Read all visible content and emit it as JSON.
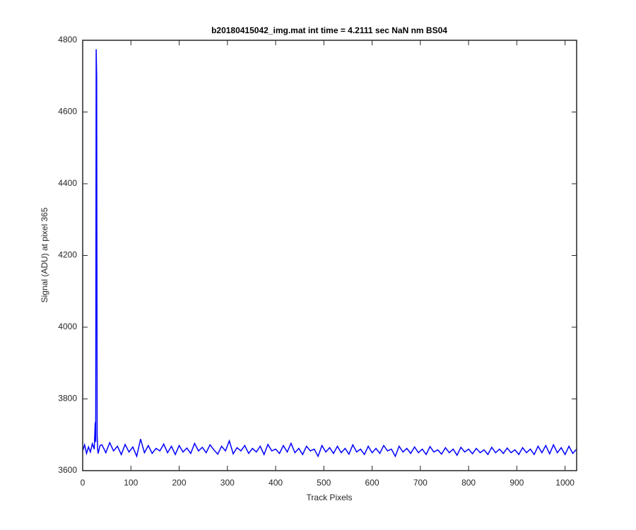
{
  "chart_data": {
    "type": "line",
    "title": "b20180415042_img.mat int time = 4.2111 sec  NaN nm BS04",
    "x_label": "Track Pixels",
    "y_label": "Signal (ADU) at pixel 365",
    "color": "#0000ff",
    "x": [
      0,
      4,
      8,
      12,
      16,
      20,
      24,
      26,
      27,
      28,
      29,
      30,
      31,
      32,
      36,
      40,
      48,
      56,
      64,
      72,
      80,
      88,
      96,
      104,
      112,
      120,
      128,
      136,
      144,
      152,
      160,
      168,
      176,
      184,
      192,
      200,
      208,
      216,
      224,
      232,
      240,
      248,
      256,
      264,
      272,
      280,
      288,
      296,
      304,
      312,
      320,
      328,
      336,
      344,
      352,
      360,
      368,
      376,
      384,
      392,
      400,
      408,
      416,
      424,
      432,
      440,
      448,
      456,
      464,
      472,
      480,
      488,
      496,
      504,
      512,
      520,
      528,
      536,
      544,
      552,
      560,
      568,
      576,
      584,
      592,
      600,
      608,
      616,
      624,
      632,
      640,
      648,
      656,
      664,
      672,
      680,
      688,
      696,
      704,
      712,
      720,
      728,
      736,
      744,
      752,
      760,
      768,
      776,
      784,
      792,
      800,
      808,
      816,
      824,
      832,
      840,
      848,
      856,
      864,
      872,
      880,
      888,
      896,
      904,
      912,
      920,
      928,
      936,
      944,
      952,
      960,
      968,
      976,
      984,
      992,
      1000,
      1008,
      1016,
      1024
    ],
    "values": [
      3655,
      3672,
      3648,
      3666,
      3652,
      3675,
      3660,
      3735,
      3680,
      4775,
      4700,
      3700,
      3660,
      3648,
      3670,
      3672,
      3650,
      3678,
      3655,
      3668,
      3645,
      3673,
      3652,
      3666,
      3640,
      3688,
      3650,
      3670,
      3648,
      3662,
      3655,
      3674,
      3650,
      3668,
      3645,
      3670,
      3652,
      3663,
      3648,
      3676,
      3655,
      3665,
      3650,
      3672,
      3658,
      3646,
      3668,
      3655,
      3683,
      3647,
      3664,
      3655,
      3670,
      3648,
      3662,
      3652,
      3668,
      3645,
      3673,
      3655,
      3660,
      3648,
      3670,
      3652,
      3676,
      3650,
      3662,
      3645,
      3668,
      3655,
      3660,
      3640,
      3670,
      3652,
      3664,
      3648,
      3668,
      3650,
      3662,
      3646,
      3672,
      3652,
      3660,
      3645,
      3668,
      3650,
      3662,
      3648,
      3670,
      3655,
      3660,
      3640,
      3668,
      3652,
      3662,
      3648,
      3666,
      3650,
      3660,
      3645,
      3667,
      3652,
      3658,
      3646,
      3664,
      3650,
      3660,
      3643,
      3665,
      3652,
      3660,
      3647,
      3662,
      3650,
      3658,
      3645,
      3665,
      3650,
      3660,
      3648,
      3663,
      3650,
      3658,
      3645,
      3664,
      3650,
      3660,
      3645,
      3668,
      3650,
      3670,
      3647,
      3672,
      3650,
      3664,
      3645,
      3668,
      3648,
      3660
    ],
    "xlim": [
      0,
      1024
    ],
    "ylim": [
      3600,
      4800
    ],
    "xticks": [
      0,
      100,
      200,
      300,
      400,
      500,
      600,
      700,
      800,
      900,
      1000
    ],
    "yticks": [
      3600,
      3800,
      4000,
      4200,
      4400,
      4600,
      4800
    ],
    "grid": false
  }
}
